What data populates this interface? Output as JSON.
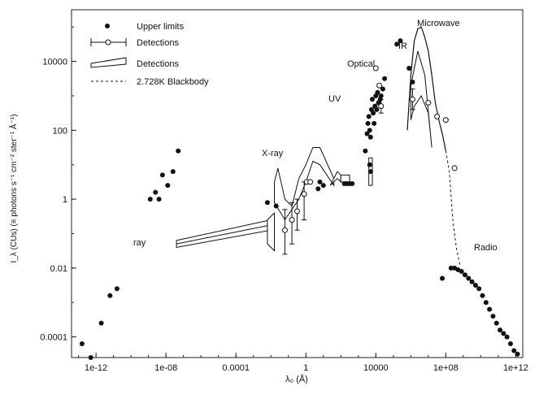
{
  "chart_data": {
    "type": "scatter",
    "title": "",
    "xlabel": "λ₀ (Å)",
    "ylabel": "I_λ (CUs) (≡ photons s⁻¹ cm⁻² ster⁻¹ Å⁻¹)",
    "xscale": "log",
    "yscale": "log",
    "xlim_log10": [
      -13.4,
      12.4
    ],
    "ylim_log10": [
      -4.6,
      5.5
    ],
    "x_ticks": [
      "1e-12",
      "1e-08",
      "0.0001",
      "1",
      "10000",
      "1e+08",
      "1e+12"
    ],
    "y_ticks": [
      "0.0001",
      "0.01",
      "1",
      "100",
      "10000"
    ],
    "legend": {
      "placement": "top-left",
      "entries": [
        "Upper limits",
        "Detections",
        "Detections",
        "2.728K Blackbody"
      ]
    },
    "annotations": [
      "ray",
      "X-ray",
      "UV",
      "Optical",
      "IR",
      "Microwave",
      "Radio"
    ],
    "series": [
      {
        "name": "Upper limits",
        "marker": "filled-circle",
        "points_log10": [
          [
            -12.8,
            -4.2
          ],
          [
            -12.3,
            -4.6
          ],
          [
            -11.7,
            -3.6
          ],
          [
            -11.2,
            -2.8
          ],
          [
            -10.8,
            -2.6
          ],
          [
            -8.9,
            0.0
          ],
          [
            -8.6,
            0.2
          ],
          [
            -8.4,
            0.0
          ],
          [
            -8.2,
            0.7
          ],
          [
            -7.9,
            0.4
          ],
          [
            -7.6,
            0.8
          ],
          [
            -7.3,
            1.4
          ],
          [
            -2.2,
            -0.1
          ],
          [
            -1.7,
            -0.2
          ],
          [
            0.7,
            0.3
          ],
          [
            0.8,
            0.5
          ],
          [
            1.0,
            0.4
          ],
          [
            2.2,
            0.45
          ],
          [
            2.35,
            0.45
          ],
          [
            2.5,
            0.45
          ],
          [
            2.65,
            0.45
          ],
          [
            3.4,
            1.4
          ],
          [
            3.5,
            1.9
          ],
          [
            3.55,
            2.2
          ],
          [
            3.6,
            2.4
          ],
          [
            3.65,
            2.0
          ],
          [
            3.7,
            1.8
          ],
          [
            3.75,
            2.6
          ],
          [
            3.8,
            2.9
          ],
          [
            3.85,
            2.5
          ],
          [
            3.9,
            2.2
          ],
          [
            3.95,
            2.7
          ],
          [
            4.0,
            3.0
          ],
          [
            4.05,
            2.6
          ],
          [
            4.1,
            3.1
          ],
          [
            4.15,
            2.8
          ],
          [
            4.2,
            3.3
          ],
          [
            4.25,
            2.9
          ],
          [
            4.3,
            3.0
          ],
          [
            3.7,
            0.8
          ],
          [
            3.65,
            1.0
          ],
          [
            4.4,
            3.2
          ],
          [
            4.5,
            3.5
          ],
          [
            5.2,
            4.5
          ],
          [
            5.4,
            4.6
          ],
          [
            5.9,
            3.8
          ],
          [
            6.1,
            3.4
          ],
          [
            7.8,
            -2.3
          ],
          [
            8.3,
            -2.0
          ],
          [
            8.5,
            -2.0
          ],
          [
            8.7,
            -2.05
          ],
          [
            8.9,
            -2.1
          ],
          [
            9.1,
            -2.2
          ],
          [
            9.3,
            -2.3
          ],
          [
            9.5,
            -2.4
          ],
          [
            9.7,
            -2.5
          ],
          [
            9.9,
            -2.6
          ],
          [
            10.1,
            -2.8
          ],
          [
            10.3,
            -3.0
          ],
          [
            10.5,
            -3.2
          ],
          [
            10.7,
            -3.4
          ],
          [
            10.9,
            -3.6
          ],
          [
            11.1,
            -3.8
          ],
          [
            11.3,
            -3.9
          ],
          [
            11.5,
            -4.0
          ],
          [
            11.7,
            -4.2
          ],
          [
            11.9,
            -4.4
          ],
          [
            12.1,
            -4.5
          ]
        ]
      },
      {
        "name": "Detections",
        "marker": "open-circle-with-errorbars",
        "points_log10": [
          [
            -1.2,
            -0.9
          ],
          [
            -0.8,
            -0.6
          ],
          [
            -0.5,
            -0.35
          ],
          [
            -0.1,
            0.15
          ],
          [
            0.05,
            0.5
          ],
          [
            0.25,
            0.5
          ],
          [
            4.0,
            3.8
          ],
          [
            4.2,
            3.3
          ],
          [
            4.3,
            2.7
          ],
          [
            6.1,
            2.9
          ],
          [
            7.0,
            2.8
          ],
          [
            7.5,
            2.4
          ],
          [
            8.0,
            2.3
          ],
          [
            8.5,
            0.9
          ]
        ],
        "errors_log10": [
          [
            -1.2,
            -1.6,
            -0.3
          ],
          [
            -0.8,
            -1.3,
            -0.1
          ],
          [
            -0.5,
            -0.9,
            0.0
          ],
          [
            -0.1,
            -0.6,
            0.5
          ],
          [
            4.3,
            2.5,
            2.9
          ],
          [
            6.1,
            2.6,
            3.2
          ]
        ]
      },
      {
        "name": "Detections",
        "marker": "band",
        "segments": [
          "x-ray band",
          "hard x-ray wedge",
          "optical box",
          "IR envelope"
        ]
      },
      {
        "name": "2.728K Blackbody",
        "marker": "dashed-line",
        "points_log10": [
          [
            5.8,
            2.0
          ],
          [
            6.0,
            3.6
          ],
          [
            6.2,
            4.6
          ],
          [
            6.4,
            4.95
          ],
          [
            6.6,
            5.0
          ],
          [
            6.8,
            4.7
          ],
          [
            7.0,
            4.3
          ],
          [
            7.2,
            3.6
          ],
          [
            7.4,
            2.8
          ],
          [
            7.6,
            2.3
          ],
          [
            7.8,
            1.9
          ],
          [
            8.0,
            1.4
          ],
          [
            8.2,
            0.8
          ],
          [
            8.4,
            -0.6
          ],
          [
            8.6,
            -1.4
          ],
          [
            8.8,
            -1.9
          ]
        ]
      }
    ]
  }
}
